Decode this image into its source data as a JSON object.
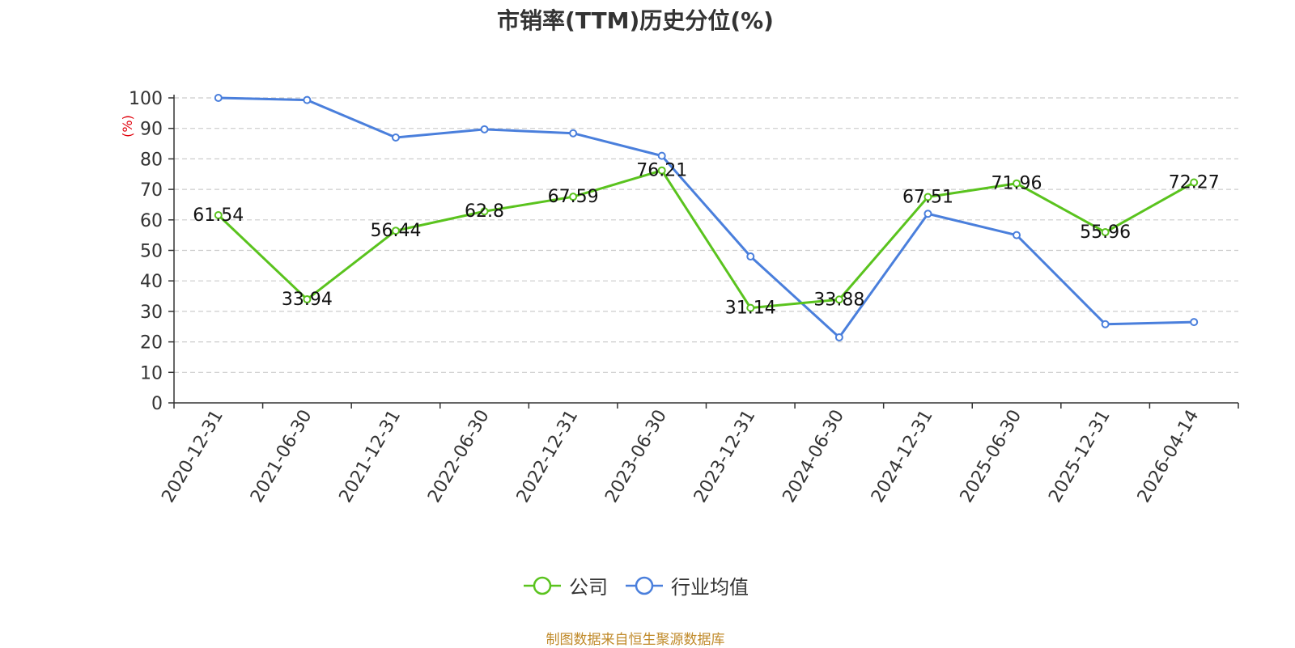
{
  "chart_data": {
    "type": "line",
    "title": "市销率(TTM)历史分位(%)",
    "ylabel": "(%)",
    "xlabel": "",
    "ylim": [
      0,
      100
    ],
    "yticks": [
      0,
      10,
      20,
      30,
      40,
      50,
      60,
      70,
      80,
      90,
      100
    ],
    "grid": true,
    "legend_position": "bottom",
    "categories": [
      "2020-12-31",
      "2021-06-30",
      "2021-12-31",
      "2022-06-30",
      "2022-12-31",
      "2023-06-30",
      "2023-12-31",
      "2024-06-30",
      "2024-12-31",
      "2025-06-30",
      "2025-12-31",
      "2026-04-14"
    ],
    "series": [
      {
        "name": "公司",
        "color": "#5ac31e",
        "values": [
          61.54,
          33.94,
          56.44,
          62.8,
          67.59,
          76.21,
          31.14,
          33.88,
          67.51,
          71.96,
          55.96,
          72.27
        ],
        "data_labels": [
          "61.54",
          "33.94",
          "56.44",
          "62.8",
          "67.59",
          "76.21",
          "31.14",
          "33.88",
          "67.51",
          "71.96",
          "55.96",
          "72.27"
        ]
      },
      {
        "name": "行业均值",
        "color": "#4a7fdc",
        "values": [
          100,
          99.3,
          87,
          89.7,
          88.4,
          81,
          48,
          21.5,
          62,
          55,
          25.8,
          26.5
        ]
      }
    ],
    "source": "制图数据来自恒生聚源数据库"
  }
}
